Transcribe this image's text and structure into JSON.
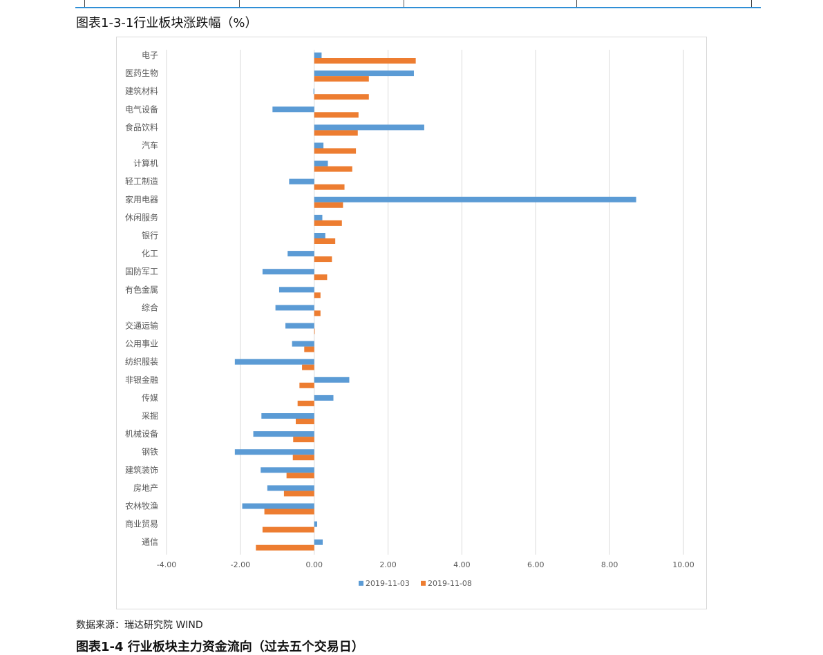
{
  "top_table": {
    "cells": [
      "",
      "",
      "",
      ""
    ]
  },
  "figure_title": "图表1-3-1行业板块涨跌幅（%）",
  "source_note": "数据来源：瑞达研究院 WIND",
  "next_figure_title": "图表1-4 行业板块主力资金流向（过去五个交易日）",
  "chart_data": {
    "type": "bar",
    "orientation": "horizontal",
    "title": "",
    "xlabel": "",
    "ylabel": "",
    "categories": [
      "电子",
      "医药生物",
      "建筑材料",
      "电气设备",
      "食品饮料",
      "汽车",
      "计算机",
      "轻工制造",
      "家用电器",
      "休闲服务",
      "银行",
      "化工",
      "国防军工",
      "有色金属",
      "综合",
      "交通运输",
      "公用事业",
      "纺织服装",
      "非银金融",
      "传媒",
      "采掘",
      "机械设备",
      "钢铁",
      "建筑装饰",
      "房地产",
      "农林牧渔",
      "商业贸易",
      "通信"
    ],
    "series": [
      {
        "name": "2019-11-03",
        "color": "#5b9bd5",
        "values": [
          0.2,
          2.7,
          -0.02,
          -1.13,
          2.98,
          0.25,
          0.37,
          -0.68,
          8.72,
          0.22,
          0.3,
          -0.72,
          -1.4,
          -0.95,
          -1.05,
          -0.78,
          -0.6,
          -2.15,
          0.95,
          0.52,
          -1.43,
          -1.65,
          -2.15,
          -1.45,
          -1.27,
          -1.95,
          0.08,
          0.23
        ]
      },
      {
        "name": "2019-11-08",
        "color": "#ed7d31",
        "values": [
          2.75,
          1.48,
          1.48,
          1.2,
          1.18,
          1.13,
          1.03,
          0.82,
          0.78,
          0.75,
          0.57,
          0.48,
          0.35,
          0.17,
          0.17,
          0.0,
          -0.27,
          -0.33,
          -0.4,
          -0.45,
          -0.5,
          -0.57,
          -0.58,
          -0.75,
          -0.82,
          -1.35,
          -1.4,
          -1.58
        ]
      }
    ],
    "xlim": [
      -4.0,
      10.0
    ],
    "xticks": [
      "-4.00",
      "-2.00",
      "0.00",
      "2.00",
      "4.00",
      "6.00",
      "8.00",
      "10.00"
    ],
    "grid": true,
    "legend": "bottom"
  }
}
